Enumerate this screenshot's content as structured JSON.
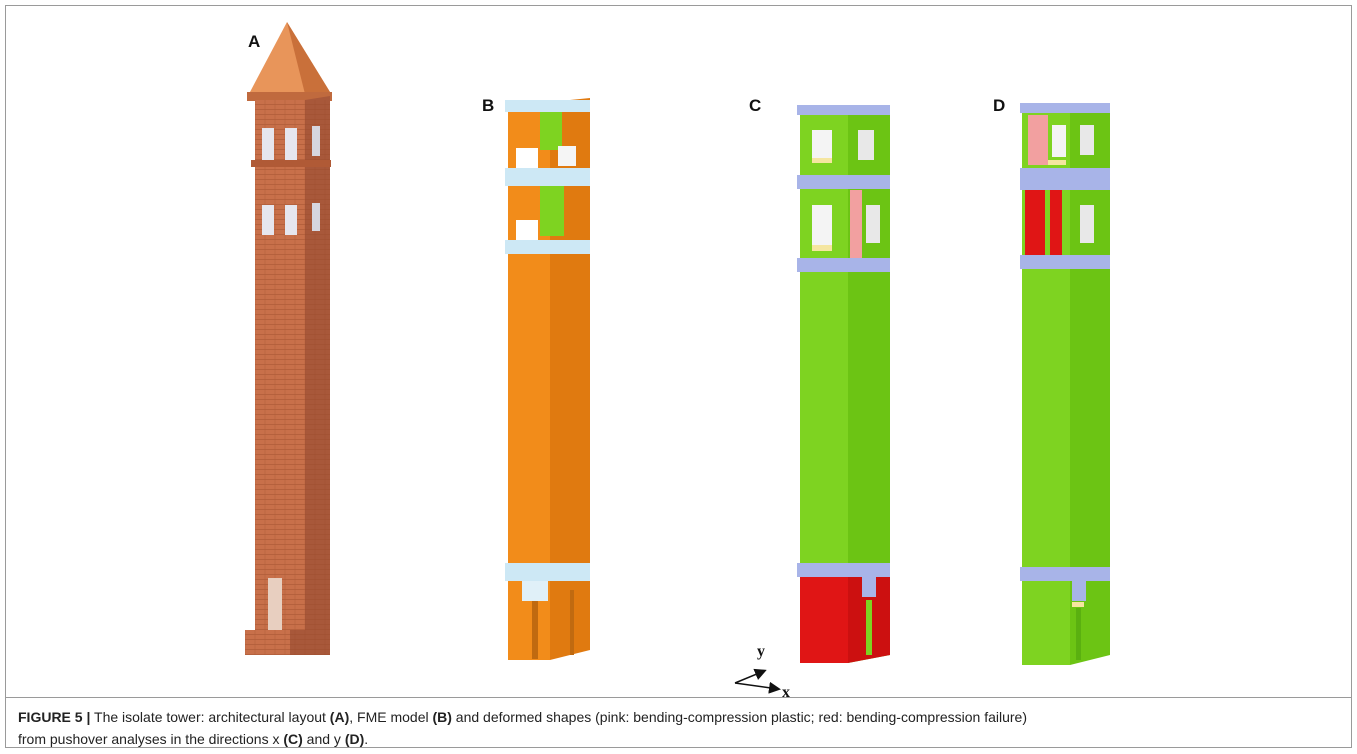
{
  "panels": [
    {
      "label": "A"
    },
    {
      "label": "B"
    },
    {
      "label": "C"
    },
    {
      "label": "D"
    }
  ],
  "axes": {
    "y": "y",
    "x": "x"
  },
  "caption": {
    "figure": "FIGURE 5 |",
    "line1": [
      " The isolate tower: architectural layout ",
      "(A)",
      ", FME model ",
      "(B)",
      " and deformed shapes (pink: bending-compression plastic; red: bending-compression failure)"
    ],
    "line2": [
      "from pushover analyses in the directions x ",
      "(C)",
      " and y ",
      "(D)",
      "."
    ]
  }
}
